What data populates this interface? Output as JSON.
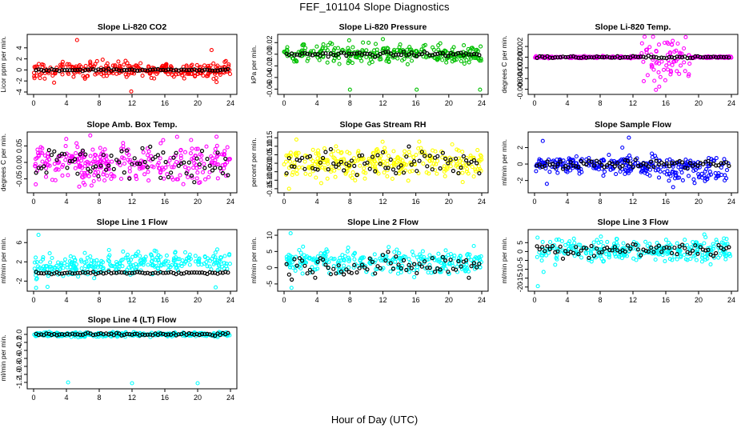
{
  "title": "FEF_101104  Slope Diagnostics",
  "xlabel": "Hour of Day (UTC)",
  "colors": {
    "red": "#ff0000",
    "green": "#00c000",
    "magenta": "#ff00ff",
    "yellow": "#ffff00",
    "blue": "#0000ff",
    "cyan": "#00ffff",
    "black": "#000000"
  },
  "chart_data": [
    {
      "type": "scatter",
      "title": "Slope Li-820 CO2",
      "ylabel": "Licor ppm per min.",
      "xlim": [
        0,
        24
      ],
      "xticks": [
        0,
        4,
        8,
        12,
        16,
        20,
        24
      ],
      "ylim": [
        -4,
        6
      ],
      "yticks": [
        -4,
        -2,
        0,
        2,
        4
      ],
      "ytick_labels": [
        "-4",
        "-2",
        "0",
        "2",
        "4"
      ],
      "color": "red",
      "center": 0,
      "spread": 0.7,
      "outliers": [
        {
          "x": 5.3,
          "y": 5.4
        },
        {
          "x": 11.9,
          "y": -3.9
        },
        {
          "x": 21.7,
          "y": 3.6
        },
        {
          "x": 22.3,
          "y": -2.2
        },
        {
          "x": 2.5,
          "y": -2.3
        }
      ],
      "ref": {
        "center": 0,
        "spread": 0.08
      }
    },
    {
      "type": "scatter",
      "title": "Slope Li-820 Pressure",
      "ylabel": "kPa per min.",
      "xlim": [
        0,
        24
      ],
      "xticks": [
        0,
        4,
        8,
        12,
        16,
        20,
        24
      ],
      "ylim": [
        -0.065,
        0.03
      ],
      "yticks": [
        -0.06,
        -0.04,
        -0.02,
        0.0,
        0.02
      ],
      "ytick_labels": [
        "-0.06",
        "-0.04",
        "-0.02",
        "0.00",
        "0.02"
      ],
      "color": "green",
      "center": 0.0,
      "spread": 0.008,
      "outliers": [
        {
          "x": 8.0,
          "y": -0.061
        },
        {
          "x": 16.1,
          "y": -0.061
        },
        {
          "x": 23.8,
          "y": -0.061
        },
        {
          "x": 12.0,
          "y": 0.026
        },
        {
          "x": 7.9,
          "y": 0.024
        },
        {
          "x": 11.6,
          "y": -0.009
        }
      ],
      "ref": {
        "center": 0.0,
        "spread": 0.002
      }
    },
    {
      "type": "scatter",
      "title": "Slope Li-820 Temp.",
      "ylabel": "degrees C per min.",
      "xlim": [
        0,
        24
      ],
      "xticks": [
        0,
        4,
        8,
        12,
        16,
        20,
        24
      ],
      "ylim": [
        -0.0065,
        0.0038
      ],
      "yticks": [
        -0.006,
        -0.004,
        -0.002,
        0.0,
        0.002
      ],
      "ytick_labels": [
        "-0.006",
        "-0.004",
        "-0.002",
        "0.000",
        "0.002"
      ],
      "color": "magenta",
      "center": 0.0,
      "spread": 0.0001,
      "burst": {
        "from": 13,
        "to": 19,
        "spread": 0.0022
      },
      "outliers": [
        {
          "x": 14.8,
          "y": -0.0061
        },
        {
          "x": 15.2,
          "y": -0.0055
        },
        {
          "x": 16.3,
          "y": 0.0025
        }
      ],
      "ref": {
        "center": 0.0,
        "spread": 0.0001
      }
    },
    {
      "type": "scatter",
      "title": "Slope Amb. Box Temp.",
      "ylabel": "degrees C per min.",
      "xlim": [
        0,
        24
      ],
      "xticks": [
        0,
        4,
        8,
        12,
        16,
        20,
        24
      ],
      "ylim": [
        -0.085,
        0.085
      ],
      "yticks": [
        -0.05,
        0.0,
        0.05
      ],
      "ytick_labels": [
        "-0.05",
        "0.00",
        "0.05"
      ],
      "color": "magenta",
      "center": 0.0,
      "spread": 0.028,
      "outliers": [
        {
          "x": 22.3,
          "y": 0.078
        },
        {
          "x": 19.2,
          "y": 0.068
        }
      ],
      "ref": {
        "center": 0.0,
        "spread": 0.025
      }
    },
    {
      "type": "scatter",
      "title": "Slope Gas Stream RH",
      "ylabel": "percent per min.",
      "xlim": [
        0,
        24
      ],
      "xticks": [
        0,
        4,
        8,
        12,
        16,
        20,
        24
      ],
      "ylim": [
        -0.16,
        0.17
      ],
      "yticks": [
        -0.15,
        -0.1,
        -0.05,
        0.0,
        0.05,
        0.1,
        0.15
      ],
      "ytick_labels": [
        "-0.15",
        "-0.10",
        "-0.05",
        "0.00",
        "0.05",
        "0.10",
        "0.15"
      ],
      "color": "yellow",
      "center": 0.0,
      "spread": 0.045,
      "outliers": [
        {
          "x": 1.5,
          "y": 0.14
        },
        {
          "x": 0.6,
          "y": -0.15
        }
      ],
      "ref": {
        "center": 0.0,
        "spread": 0.045
      }
    },
    {
      "type": "scatter",
      "title": "Slope Sample Flow",
      "ylabel": "ml/min per min.",
      "xlim": [
        0,
        24
      ],
      "xticks": [
        0,
        4,
        8,
        12,
        16,
        20,
        24
      ],
      "ylim": [
        -3.2,
        3.6
      ],
      "yticks": [
        -2,
        0,
        2
      ],
      "ytick_labels": [
        "-2",
        "0",
        "2"
      ],
      "color": "blue",
      "center": -0.1,
      "spread": 0.5,
      "band": {
        "from": 14,
        "to": 24,
        "center": -1.5,
        "spread": 0.3
      },
      "outliers": [
        {
          "x": 1.0,
          "y": 2.8
        },
        {
          "x": 11.5,
          "y": 3.2
        },
        {
          "x": 10.7,
          "y": 2.0
        },
        {
          "x": 1.5,
          "y": -2.4
        },
        {
          "x": 16.9,
          "y": -2.8
        }
      ],
      "ref": {
        "center": 0.0,
        "spread": 0.25
      }
    },
    {
      "type": "scatter",
      "title": "Slope Line 1 Flow",
      "ylabel": "ml/min per min.",
      "xlim": [
        0,
        24
      ],
      "xticks": [
        0,
        4,
        8,
        12,
        16,
        20,
        24
      ],
      "ylim": [
        -3.6,
        8.2
      ],
      "yticks": [
        -2,
        2,
        6
      ],
      "ytick_labels": [
        "-2",
        "2",
        "6"
      ],
      "color": "cyan",
      "center": 1.6,
      "spread": 1.1,
      "trend": 0.06,
      "outliers": [
        {
          "x": 0.6,
          "y": 7.6
        },
        {
          "x": 0.3,
          "y": -3.4
        },
        {
          "x": 1.7,
          "y": -3.2
        },
        {
          "x": 22.2,
          "y": -3.3
        }
      ],
      "ref": {
        "center": -0.3,
        "spread": 0.12
      }
    },
    {
      "type": "scatter",
      "title": "Slope Line 2 Flow",
      "ylabel": "ml/min per min.",
      "xlim": [
        0,
        24
      ],
      "xticks": [
        0,
        4,
        8,
        12,
        16,
        20,
        24
      ],
      "ylim": [
        -6.5,
        11
      ],
      "yticks": [
        -5,
        0,
        5,
        10
      ],
      "ytick_labels": [
        "-5",
        "0",
        "5",
        "10"
      ],
      "color": "cyan",
      "center": 1.8,
      "spread": 1.7,
      "outliers": [
        {
          "x": 0.8,
          "y": 10.6
        },
        {
          "x": 0.9,
          "y": -6.2
        }
      ],
      "ref": {
        "center": 0.6,
        "spread": 1.7
      }
    },
    {
      "type": "scatter",
      "title": "Slope Line 3 Flow",
      "ylabel": "ml/min per min.",
      "xlim": [
        0,
        24
      ],
      "xticks": [
        0,
        4,
        8,
        12,
        16,
        20,
        24
      ],
      "ylim": [
        -21,
        11
      ],
      "yticks": [
        -20,
        -15,
        -10,
        -5,
        0,
        5
      ],
      "ytick_labels": [
        "-20",
        "-15",
        "-10",
        "-5",
        "0",
        "5"
      ],
      "color": "cyan",
      "center": 1.0,
      "spread": 3.3,
      "outliers": [
        {
          "x": 0.4,
          "y": -19.5
        },
        {
          "x": 1.1,
          "y": -11.5
        },
        {
          "x": 20.7,
          "y": 9.6
        }
      ],
      "ref": {
        "center": 1.2,
        "spread": 2.2
      }
    },
    {
      "type": "scatter",
      "title": "Slope Line 4 (LT) Flow",
      "ylabel": "ml/min per min.",
      "xlim": [
        0,
        24
      ],
      "xticks": [
        0,
        4,
        8,
        12,
        16,
        20,
        24
      ],
      "ylim": [
        -1.3,
        0.12
      ],
      "yticks": [
        -1.2,
        -1.0,
        -0.8,
        -0.6,
        -0.4,
        -0.2,
        0.0
      ],
      "ytick_labels": [
        "-1.2",
        "-1.0",
        "-0.8",
        "-0.6",
        "-0.4",
        "-0.2",
        "0.0"
      ],
      "color": "cyan",
      "center": 0.0,
      "spread": 0.028,
      "outliers": [
        {
          "x": 4.2,
          "y": -1.2
        },
        {
          "x": 12.0,
          "y": -1.22
        },
        {
          "x": 20.0,
          "y": -1.22
        }
      ],
      "ref": {
        "center": 0.0,
        "spread": 0.018
      }
    }
  ]
}
